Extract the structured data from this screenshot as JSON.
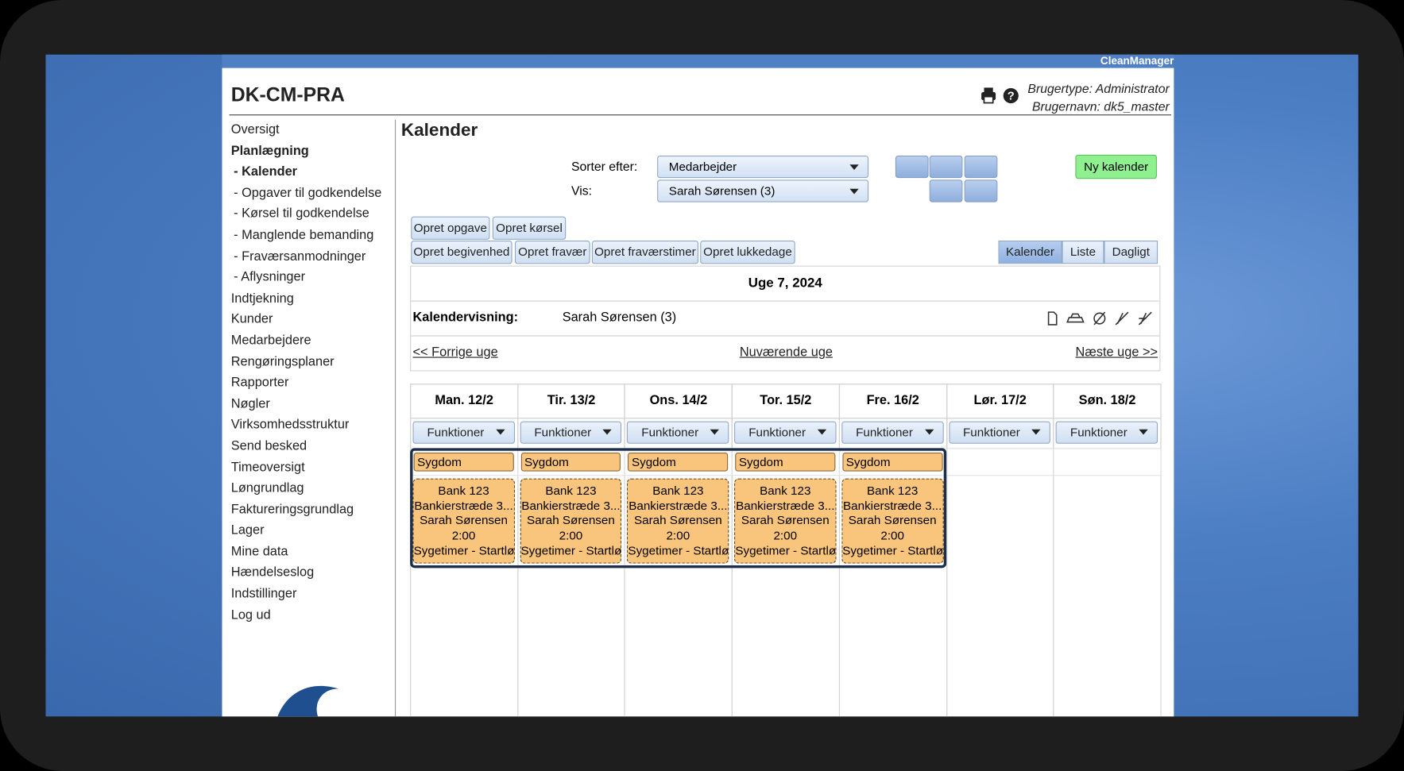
{
  "brand": "CleanManager",
  "header": {
    "title": "DK-CM-PRA",
    "user_type": "Brugertype: Administrator",
    "user_name": "Brugernavn: dk5_master"
  },
  "nav": [
    "Oversigt",
    "Planlægning",
    "- Kalender",
    "- Opgaver til godkendelse",
    "- Kørsel til godkendelse",
    "- Manglende bemanding",
    "- Fraværsanmodninger",
    "- Aflysninger",
    "Indtjekning",
    "Kunder",
    "Medarbejdere",
    "Rengøringsplaner",
    "Rapporter",
    "Nøgler",
    "Virksomhedsstruktur",
    "Send besked",
    "Timeoversigt",
    "Løngrundlag",
    "Faktureringsgrundlag",
    "Lager",
    "Mine data",
    "Hændelseslog",
    "Indstillinger",
    "Log ud"
  ],
  "page_title": "Kalender",
  "filters": {
    "sort_label": "Sorter efter:",
    "sort_value": "Medarbejder",
    "show_label": "Vis:",
    "show_value": "Sarah Sørensen (3)"
  },
  "new_calendar": "Ny kalender",
  "actions": [
    "Opret opgave",
    "Opret kørsel",
    "Opret begivenhed",
    "Opret fravær",
    "Opret fraværstimer",
    "Opret lukkedage"
  ],
  "tabs": [
    "Kalender",
    "Liste",
    "Dagligt"
  ],
  "week": {
    "title": "Uge 7, 2024",
    "view_label": "Kalendervisning:",
    "view_value": "Sarah Sørensen (3)",
    "prev": "<< Forrige uge",
    "current": "Nuværende uge",
    "next": "Næste uge >>"
  },
  "days": [
    {
      "label": "Man. 12/2",
      "functions": "Funktioner",
      "chip": "Sygdom",
      "card": [
        "Bank 123",
        "Bankierstræde 3...",
        "Sarah Sørensen",
        "2:00",
        "Sygetimer - Startløn"
      ]
    },
    {
      "label": "Tir. 13/2",
      "functions": "Funktioner",
      "chip": "Sygdom",
      "card": [
        "Bank 123",
        "Bankierstræde 3...",
        "Sarah Sørensen",
        "2:00",
        "Sygetimer - Startløn"
      ]
    },
    {
      "label": "Ons. 14/2",
      "functions": "Funktioner",
      "chip": "Sygdom",
      "card": [
        "Bank 123",
        "Bankierstræde 3...",
        "Sarah Sørensen",
        "2:00",
        "Sygetimer - Startløn"
      ]
    },
    {
      "label": "Tor. 15/2",
      "functions": "Funktioner",
      "chip": "Sygdom",
      "card": [
        "Bank 123",
        "Bankierstræde 3...",
        "Sarah Sørensen",
        "2:00",
        "Sygetimer - Startløn"
      ]
    },
    {
      "label": "Fre. 16/2",
      "functions": "Funktioner",
      "chip": "Sygdom",
      "card": [
        "Bank 123",
        "Bankierstræde 3...",
        "Sarah Sørensen",
        "2:00",
        "Sygetimer - Startløn"
      ]
    },
    {
      "label": "Lør. 17/2",
      "functions": "Funktioner"
    },
    {
      "label": "Søn. 18/2",
      "functions": "Funktioner"
    }
  ]
}
